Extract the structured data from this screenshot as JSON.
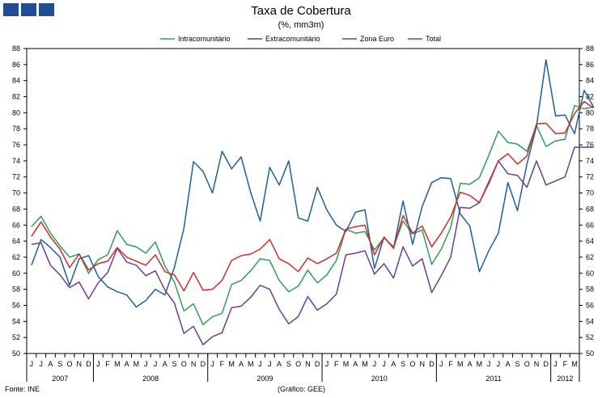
{
  "header": {
    "logo_icon": "ine-logo-blocks-icon",
    "title": "Taxa de Cobertura",
    "subtitle": "(%, mm3m)"
  },
  "footer": {
    "source": "Fonte: INE",
    "credit": "(Gráfico: GEE)"
  },
  "chart_data": {
    "type": "line",
    "title": "Taxa de Cobertura",
    "subtitle": "(%, mm3m)",
    "xlabel": "",
    "ylabel": "",
    "ylim": [
      50,
      88
    ],
    "ytick_step": 2,
    "grid": false,
    "legend_position": "top-center",
    "month_labels": [
      "J",
      "J",
      "A",
      "S",
      "O",
      "N",
      "D",
      "J",
      "F",
      "M",
      "A",
      "M",
      "J",
      "J",
      "A",
      "S",
      "O",
      "N",
      "D",
      "J",
      "F",
      "M",
      "A",
      "M",
      "J",
      "J",
      "A",
      "S",
      "O",
      "N",
      "D",
      "J",
      "F",
      "M",
      "A",
      "M",
      "J",
      "J",
      "A",
      "S",
      "O",
      "N",
      "D",
      "J",
      "F",
      "M",
      "A",
      "M",
      "J",
      "J",
      "A",
      "S",
      "O",
      "N",
      "D",
      "J",
      "F",
      "M"
    ],
    "year_groups": [
      {
        "label": "2007",
        "start": 0,
        "count": 7
      },
      {
        "label": "2008",
        "start": 7,
        "count": 12
      },
      {
        "label": "2009",
        "start": 19,
        "count": 12
      },
      {
        "label": "2010",
        "start": 31,
        "count": 12
      },
      {
        "label": "2011",
        "start": 43,
        "count": 12
      },
      {
        "label": "2012",
        "start": 55,
        "count": 3
      }
    ],
    "series": [
      {
        "name": "Intracomunitário",
        "color": "#2e9e5b",
        "values": [
          65.8,
          67.1,
          65.0,
          63.4,
          62.0,
          62.4,
          60.0,
          61.7,
          62.3,
          65.3,
          63.6,
          63.3,
          62.5,
          63.9,
          60.9,
          58.9,
          55.3,
          56.2,
          53.6,
          54.6,
          55.0,
          58.6,
          59.1,
          60.3,
          61.8,
          61.6,
          59.1,
          57.7,
          58.4,
          60.4,
          58.8,
          59.8,
          61.6,
          65.5,
          65.0,
          65.2,
          62.9,
          64.4,
          63.3,
          66.5,
          64.9,
          65.4,
          61.1,
          63.0,
          65.7,
          71.2,
          71.1,
          71.9,
          74.7,
          77.7,
          76.3,
          76.1,
          75.2,
          78.4,
          75.8,
          76.5,
          76.7,
          80.9,
          80.5,
          80.7
        ]
      },
      {
        "name": "Extracomunitário",
        "color": "#1f5f98",
        "values": [
          61.0,
          64.2,
          63.2,
          62.0,
          58.5,
          61.8,
          62.2,
          59.6,
          58.3,
          57.7,
          57.3,
          55.8,
          56.6,
          58.0,
          57.3,
          60.7,
          65.6,
          73.9,
          72.7,
          70.0,
          75.2,
          73.0,
          74.5,
          70.1,
          66.5,
          73.2,
          71.0,
          74.0,
          66.9,
          66.5,
          70.7,
          67.9,
          66.0,
          65.2,
          67.6,
          67.9,
          60.6,
          64.5,
          63.1,
          69.0,
          63.6,
          68.3,
          71.3,
          71.9,
          71.8,
          67.4,
          65.9,
          60.2,
          62.8,
          65.0,
          71.3,
          67.8,
          73.6,
          78.3,
          86.6,
          79.6,
          79.7,
          77.4,
          82.8,
          80.7
        ]
      },
      {
        "name": "Zona Euro",
        "color": "#6a3d98",
        "values": [
          63.6,
          63.8,
          61.0,
          59.8,
          58.2,
          58.9,
          56.8,
          58.8,
          60.1,
          63.1,
          61.4,
          61.0,
          59.7,
          60.3,
          57.9,
          56.3,
          52.5,
          53.4,
          51.1,
          52.1,
          52.6,
          55.7,
          55.9,
          57.0,
          58.5,
          58.0,
          55.5,
          53.7,
          54.6,
          57.1,
          55.4,
          56.2,
          57.4,
          62.3,
          62.5,
          62.8,
          59.9,
          61.2,
          59.4,
          63.3,
          60.9,
          61.8,
          57.6,
          59.7,
          62.0,
          68.2,
          68.1,
          68.8,
          71.4,
          74.0,
          72.4,
          72.2,
          70.7,
          74.0,
          71.0,
          71.5,
          72.0,
          75.7,
          75.7,
          75.7
        ]
      },
      {
        "name": "Total",
        "color": "#d42b2b",
        "values": [
          64.6,
          66.4,
          64.5,
          63.0,
          60.7,
          62.4,
          60.4,
          61.2,
          61.5,
          63.2,
          62.0,
          61.5,
          61.0,
          62.3,
          60.2,
          59.8,
          57.8,
          60.1,
          57.9,
          58.0,
          59.1,
          61.6,
          62.2,
          62.4,
          63.0,
          64.2,
          61.8,
          61.2,
          60.2,
          61.9,
          61.2,
          61.8,
          62.5,
          65.5,
          65.8,
          66.0,
          62.3,
          64.5,
          63.1,
          67.2,
          65.0,
          65.9,
          63.3,
          65.0,
          67.0,
          70.1,
          69.7,
          68.8,
          71.2,
          74.0,
          74.9,
          73.6,
          74.6,
          78.6,
          78.7,
          77.4,
          77.5,
          79.9,
          81.4,
          80.6
        ]
      }
    ]
  }
}
